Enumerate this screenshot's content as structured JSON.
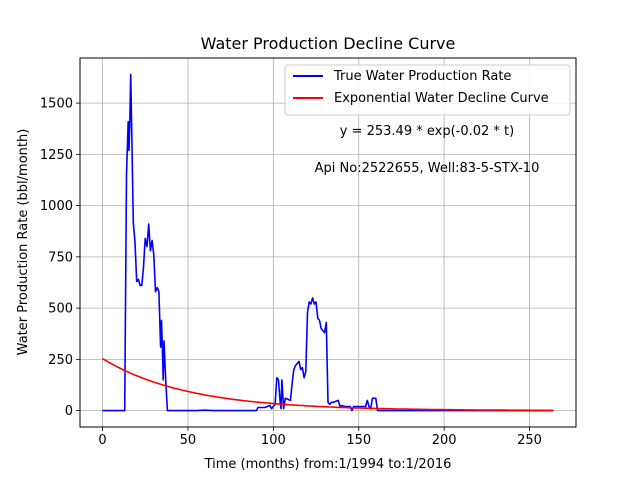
{
  "chart_data": {
    "type": "line",
    "title": "Water Production Decline Curve",
    "xlabel": "Time (months) from:1/1994 to:1/2016",
    "ylabel": "Water Production Rate (bbl/month)",
    "xlim": [
      -13.2,
      277.2
    ],
    "ylim": [
      -80,
      1720
    ],
    "xticks": [
      0,
      50,
      100,
      150,
      200,
      250
    ],
    "yticks": [
      0,
      250,
      500,
      750,
      1000,
      1250,
      1500
    ],
    "grid": true,
    "legend_position": "top-right",
    "annotations": [
      "y = 253.49 * exp(-0.02 * t)",
      "Api No:2522655, Well:83-5-STX-10"
    ],
    "series": [
      {
        "name": "True Water Production Rate",
        "color": "#0000ff",
        "points": [
          [
            0,
            0
          ],
          [
            13,
            0
          ],
          [
            14,
            1150
          ],
          [
            15,
            1410
          ],
          [
            15.5,
            1270
          ],
          [
            16,
            1420
          ],
          [
            16.5,
            1640
          ],
          [
            17,
            1400
          ],
          [
            18,
            920
          ],
          [
            19,
            820
          ],
          [
            20,
            630
          ],
          [
            21,
            640
          ],
          [
            22,
            610
          ],
          [
            23,
            610
          ],
          [
            24,
            700
          ],
          [
            25,
            840
          ],
          [
            26,
            800
          ],
          [
            27,
            910
          ],
          [
            28,
            780
          ],
          [
            29,
            830
          ],
          [
            30,
            760
          ],
          [
            31,
            580
          ],
          [
            32,
            600
          ],
          [
            33,
            580
          ],
          [
            34,
            310
          ],
          [
            34.5,
            440
          ],
          [
            35,
            320
          ],
          [
            35.5,
            150
          ],
          [
            36,
            340
          ],
          [
            37,
            150
          ],
          [
            38,
            0
          ],
          [
            45,
            0
          ],
          [
            55,
            0
          ],
          [
            60,
            2
          ],
          [
            65,
            0
          ],
          [
            80,
            0
          ],
          [
            90,
            0
          ],
          [
            91,
            15
          ],
          [
            95,
            15
          ],
          [
            98,
            25
          ],
          [
            99,
            10
          ],
          [
            101,
            30
          ],
          [
            102,
            160
          ],
          [
            103,
            150
          ],
          [
            104,
            40
          ],
          [
            104.5,
            10
          ],
          [
            105,
            150
          ],
          [
            106,
            10
          ],
          [
            107,
            60
          ],
          [
            110,
            50
          ],
          [
            111,
            130
          ],
          [
            112,
            200
          ],
          [
            113,
            220
          ],
          [
            115,
            240
          ],
          [
            116,
            200
          ],
          [
            117,
            210
          ],
          [
            118,
            160
          ],
          [
            119,
            190
          ],
          [
            120,
            480
          ],
          [
            121,
            530
          ],
          [
            122,
            520
          ],
          [
            123,
            550
          ],
          [
            124,
            520
          ],
          [
            125,
            530
          ],
          [
            126,
            450
          ],
          [
            127,
            440
          ],
          [
            128,
            400
          ],
          [
            130,
            380
          ],
          [
            131,
            430
          ],
          [
            132,
            40
          ],
          [
            133,
            30
          ],
          [
            134,
            40
          ],
          [
            135,
            40
          ],
          [
            138,
            50
          ],
          [
            139,
            20
          ],
          [
            140,
            25
          ],
          [
            142,
            20
          ],
          [
            145,
            20
          ],
          [
            146,
            0
          ],
          [
            147,
            20
          ],
          [
            150,
            20
          ],
          [
            154,
            20
          ],
          [
            155,
            50
          ],
          [
            156,
            20
          ],
          [
            157,
            10
          ],
          [
            158,
            60
          ],
          [
            160,
            60
          ],
          [
            161,
            0
          ],
          [
            180,
            0
          ],
          [
            220,
            0
          ],
          [
            264,
            0
          ]
        ]
      },
      {
        "name": "Exponential Water Decline Curve",
        "color": "#ff0000",
        "equation": {
          "a": 253.49,
          "b": -0.02
        },
        "x_range": [
          0,
          264
        ]
      }
    ]
  }
}
